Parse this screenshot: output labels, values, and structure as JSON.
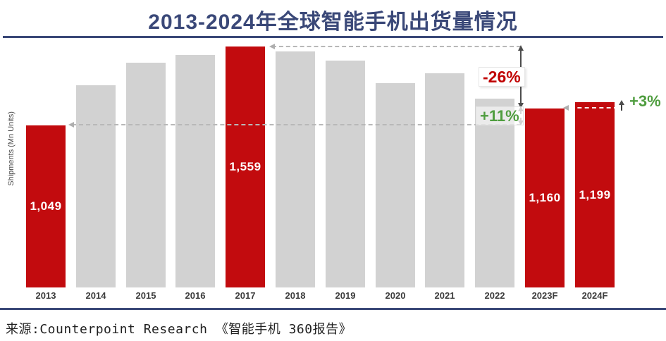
{
  "header": {
    "title": "2013-2024年全球智能手机出货量情况"
  },
  "chart_data": {
    "type": "bar",
    "title": "2013-2024年全球智能手机出货量情况",
    "xlabel": "",
    "ylabel": "Shipments (Mn Units)",
    "categories": [
      "2013",
      "2014",
      "2015",
      "2016",
      "2017",
      "2018",
      "2019",
      "2020",
      "2021",
      "2022",
      "2023F",
      "2024F"
    ],
    "values": [
      1049,
      1310,
      1455,
      1505,
      1559,
      1525,
      1470,
      1320,
      1385,
      1220,
      1160,
      1199
    ],
    "bar_labels": [
      "1,049",
      "",
      "",
      "",
      "1,559",
      "",
      "",
      "",
      "",
      "",
      "1,160",
      "1,199"
    ],
    "highlighted": [
      true,
      false,
      false,
      false,
      true,
      false,
      false,
      false,
      false,
      false,
      true,
      true
    ],
    "ylim": [
      0,
      1600
    ],
    "grid": false,
    "legend": "none",
    "colors": {
      "highlight_bar": "#c20b0e",
      "default_bar": "#d2d2d2"
    },
    "annotations": {
      "decline": {
        "label": "-26%",
        "color": "#c00000"
      },
      "recovery": {
        "label": "+11%",
        "color": "#4f9d3f"
      },
      "growth": {
        "label": "+3%",
        "color": "#4f9d3f"
      }
    }
  },
  "footer": {
    "source": "来源:Counterpoint Research 《智能手机 360报告》"
  },
  "theme": {
    "accent_navy": "#3a4878",
    "annotation_red": "#c00000",
    "annotation_green": "#4f9d3f",
    "bar_red": "#c20b0e",
    "bar_gray": "#d2d2d2"
  }
}
